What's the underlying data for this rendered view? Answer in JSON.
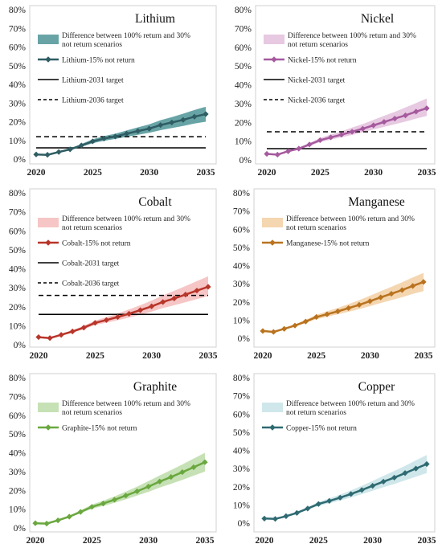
{
  "chart_data": [
    {
      "type": "line",
      "title": "Lithium",
      "x": [
        2020,
        2021,
        2022,
        2023,
        2024,
        2025,
        2026,
        2027,
        2028,
        2029,
        2030,
        2031,
        2032,
        2033,
        2034,
        2035
      ],
      "xticks": [
        2020,
        2025,
        2030,
        2035
      ],
      "ylim": [
        0,
        80
      ],
      "yticks": [
        "0%",
        "10%",
        "20%",
        "30%",
        "40%",
        "50%",
        "60%",
        "70%",
        "80%"
      ],
      "color": "#2f5d64",
      "band_color": "#4d9497",
      "series": [
        {
          "name": "Lithium-15% not return",
          "values": [
            2.5,
            2.3,
            3.8,
            5.2,
            7.3,
            9.5,
            11.0,
            12.1,
            13.6,
            15.0,
            16.3,
            18.2,
            19.6,
            21.0,
            22.7,
            24.1
          ]
        }
      ],
      "band": {
        "name": "Difference between 100% return and 30% not return scenarios",
        "lower": [
          2.5,
          2.3,
          3.5,
          4.8,
          6.6,
          8.5,
          9.8,
          10.8,
          11.9,
          13.0,
          14.1,
          15.5,
          16.6,
          17.7,
          19.0,
          20.0
        ],
        "upper": [
          2.5,
          2.3,
          4.2,
          5.8,
          8.1,
          10.6,
          12.3,
          13.6,
          15.3,
          17.0,
          18.6,
          20.8,
          22.5,
          24.3,
          26.3,
          28.0
        ]
      },
      "targets": [
        {
          "name": "Lithium-2031 target",
          "value": 6,
          "dash": false
        },
        {
          "name": "Lithium-2036 target",
          "value": 12,
          "dash": true
        }
      ]
    },
    {
      "type": "line",
      "title": "Nickel",
      "x": [
        2020,
        2021,
        2022,
        2023,
        2024,
        2025,
        2026,
        2027,
        2028,
        2029,
        2030,
        2031,
        2032,
        2033,
        2034,
        2035
      ],
      "xticks": [
        2020,
        2025,
        2030,
        2035
      ],
      "ylim": [
        0,
        80
      ],
      "yticks": [
        "0%",
        "10%",
        "20%",
        "30%",
        "40%",
        "50%",
        "60%",
        "70%",
        "80%"
      ],
      "color": "#a65a9e",
      "band_color": "#e3c0dc",
      "series": [
        {
          "name": "Nickel-15% not return",
          "values": [
            3.2,
            2.8,
            4.6,
            6.0,
            8.2,
            10.5,
            12.0,
            13.4,
            15.0,
            16.6,
            18.4,
            20.2,
            22.0,
            23.7,
            25.7,
            27.5
          ]
        }
      ],
      "band": {
        "name": "Difference between 100% return and 30% not return scenarios",
        "lower": [
          3.2,
          2.8,
          4.3,
          5.5,
          7.4,
          9.5,
          10.8,
          12.0,
          13.3,
          14.7,
          16.2,
          17.6,
          19.0,
          20.4,
          22.0,
          23.4
        ],
        "upper": [
          3.2,
          2.8,
          4.9,
          6.6,
          9.0,
          11.7,
          13.5,
          15.2,
          17.2,
          19.1,
          21.3,
          23.5,
          25.6,
          27.9,
          30.3,
          32.7
        ]
      },
      "targets": [
        {
          "name": "Nickel-2031 target",
          "value": 6,
          "dash": false
        },
        {
          "name": "Nickel-2036 target",
          "value": 15,
          "dash": true
        }
      ]
    },
    {
      "type": "line",
      "title": "Cobalt",
      "x": [
        2020,
        2021,
        2022,
        2023,
        2024,
        2025,
        2026,
        2027,
        2028,
        2029,
        2030,
        2031,
        2032,
        2033,
        2034,
        2035
      ],
      "xticks": [
        2020,
        2025,
        2030,
        2035
      ],
      "ylim": [
        0,
        80
      ],
      "yticks": [
        "0%",
        "10%",
        "20%",
        "30%",
        "40%",
        "50%",
        "60%",
        "70%",
        "80%"
      ],
      "color": "#b8352a",
      "band_color": "#f4bcbc",
      "series": [
        {
          "name": "Cobalt-15% not return",
          "values": [
            4.0,
            3.5,
            5.2,
            7.0,
            9.0,
            11.5,
            13.0,
            14.6,
            16.3,
            18.2,
            20.2,
            22.5,
            24.4,
            26.4,
            28.5,
            30.5
          ]
        }
      ],
      "band": {
        "name": "Difference between 100% return and 30% not return scenarios",
        "lower": [
          4.0,
          3.5,
          4.8,
          6.4,
          8.1,
          10.4,
          11.6,
          12.9,
          14.3,
          15.8,
          17.4,
          19.3,
          20.8,
          22.4,
          24.0,
          25.6
        ],
        "upper": [
          4.0,
          3.5,
          5.6,
          7.6,
          10.0,
          12.7,
          14.5,
          16.5,
          18.6,
          20.8,
          23.3,
          26.0,
          28.4,
          30.9,
          33.5,
          36.0
        ]
      },
      "targets": [
        {
          "name": "Cobalt-2031 target",
          "value": 16,
          "dash": false
        },
        {
          "name": "Cobalt-2036 target",
          "value": 26,
          "dash": true
        }
      ]
    },
    {
      "type": "line",
      "title": "Manganese",
      "x": [
        2020,
        2021,
        2022,
        2023,
        2024,
        2025,
        2026,
        2027,
        2028,
        2029,
        2030,
        2031,
        2032,
        2033,
        2034,
        2035
      ],
      "xticks": [
        2020,
        2025,
        2030,
        2035
      ],
      "ylim": [
        0,
        80
      ],
      "yticks": [
        "0%",
        "10%",
        "20%",
        "30%",
        "40%",
        "50%",
        "60%",
        "70%",
        "80%"
      ],
      "color": "#b9731f",
      "band_color": "#f2cfa3",
      "series": [
        {
          "name": "Manganese-15% not return",
          "values": [
            4.0,
            3.5,
            5.2,
            7.0,
            9.2,
            11.7,
            13.2,
            14.8,
            16.6,
            18.4,
            20.4,
            22.5,
            24.5,
            26.5,
            28.8,
            31.0
          ]
        }
      ],
      "band": {
        "name": "Difference between 100% return and 30% not return scenarios",
        "lower": [
          4.0,
          3.5,
          4.8,
          6.4,
          8.4,
          10.5,
          11.8,
          13.2,
          14.6,
          16.1,
          17.7,
          19.4,
          21.0,
          22.6,
          24.4,
          26.0
        ],
        "upper": [
          4.0,
          3.5,
          5.6,
          7.6,
          10.2,
          12.9,
          14.8,
          16.7,
          18.8,
          21.0,
          23.4,
          25.9,
          28.3,
          30.8,
          33.5,
          36.0
        ]
      },
      "targets": []
    },
    {
      "type": "line",
      "title": "Graphite",
      "x": [
        2020,
        2021,
        2022,
        2023,
        2024,
        2025,
        2026,
        2027,
        2028,
        2029,
        2030,
        2031,
        2032,
        2033,
        2034,
        2035
      ],
      "xticks": [
        2020,
        2025,
        2030,
        2035
      ],
      "ylim": [
        0,
        80
      ],
      "yticks": [
        "0%",
        "10%",
        "20%",
        "30%",
        "40%",
        "50%",
        "60%",
        "70%",
        "80%"
      ],
      "color": "#6aa83f",
      "band_color": "#bcdca8",
      "series": [
        {
          "name": "Graphite-15% not return",
          "values": [
            2.5,
            2.3,
            4.0,
            6.0,
            8.5,
            11.2,
            13.0,
            15.0,
            17.2,
            19.5,
            22.0,
            24.7,
            27.1,
            29.7,
            32.3,
            35.0
          ]
        }
      ],
      "band": {
        "name": "Difference between 100% return and 30% not return scenarios",
        "lower": [
          2.5,
          2.3,
          3.7,
          5.5,
          7.8,
          10.2,
          11.7,
          13.4,
          15.2,
          17.2,
          19.2,
          21.5,
          23.5,
          25.6,
          27.8,
          30.0
        ],
        "upper": [
          2.5,
          2.3,
          4.3,
          6.6,
          9.4,
          12.4,
          14.5,
          16.8,
          19.3,
          22.0,
          24.9,
          27.9,
          30.8,
          33.8,
          36.9,
          40.0
        ]
      },
      "targets": []
    },
    {
      "type": "line",
      "title": "Copper",
      "x": [
        2020,
        2021,
        2022,
        2023,
        2024,
        2025,
        2026,
        2027,
        2028,
        2029,
        2030,
        2031,
        2032,
        2033,
        2034,
        2035
      ],
      "xticks": [
        2020,
        2025,
        2030,
        2035
      ],
      "ylim": [
        0,
        80
      ],
      "yticks": [
        "0%",
        "10%",
        "20%",
        "30%",
        "40%",
        "50%",
        "60%",
        "70%",
        "80%"
      ],
      "color": "#2e6a72",
      "band_color": "#c7e3e6",
      "series": [
        {
          "name": "Copper-15% not return",
          "values": [
            2.5,
            2.3,
            3.8,
            5.6,
            8.0,
            10.5,
            12.2,
            14.0,
            16.0,
            18.2,
            20.5,
            22.8,
            25.0,
            27.5,
            30.0,
            32.5
          ]
        }
      ],
      "band": {
        "name": "Difference between 100% return and 30% not return scenarios",
        "lower": [
          2.5,
          2.3,
          3.5,
          5.1,
          7.3,
          9.5,
          10.9,
          12.4,
          14.1,
          15.9,
          17.8,
          19.7,
          21.5,
          23.5,
          25.5,
          27.5
        ],
        "upper": [
          2.5,
          2.3,
          4.1,
          6.2,
          8.8,
          11.6,
          13.6,
          15.7,
          18.0,
          20.5,
          23.2,
          26.0,
          28.7,
          31.5,
          34.5,
          37.5
        ]
      },
      "targets": []
    }
  ]
}
